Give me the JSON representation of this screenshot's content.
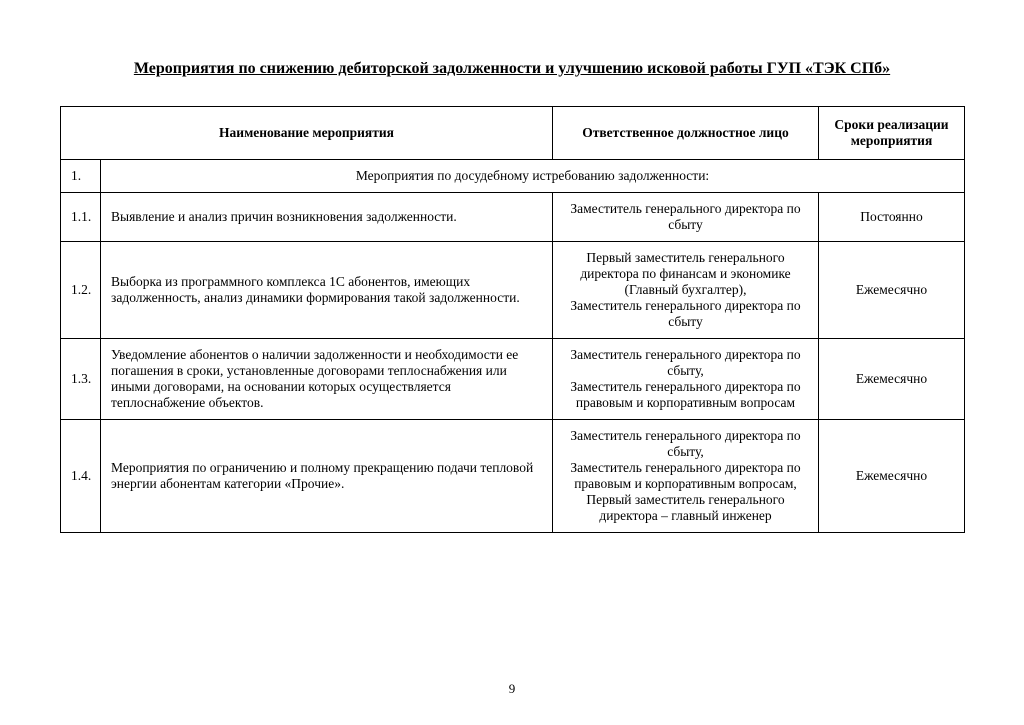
{
  "title": "Мероприятия  по снижению дебиторской задолженности и улучшению исковой работы ГУП «ТЭК СПб»",
  "headers": {
    "name": "Наименование мероприятия",
    "responsible": "Ответственное должностное лицо",
    "term": "Сроки реализации мероприятия"
  },
  "section": {
    "num": "1.",
    "label": "Мероприятия по досудебному истребованию задолженности:"
  },
  "rows": [
    {
      "num": "1.1.",
      "name": "Выявление и анализ причин возникновения задолженности.",
      "responsible": "Заместитель генерального директора по сбыту",
      "term": "Постоянно"
    },
    {
      "num": "1.2.",
      "name": "Выборка из программного  комплекса 1С абонентов, имеющих задолженность, анализ динамики формирования такой задолженности.",
      "responsible": "Первый заместитель генерального директора по финансам и экономике (Главный бухгалтер),\nЗаместитель генерального директора по сбыту",
      "term": "Ежемесячно"
    },
    {
      "num": "1.3.",
      "name": "Уведомление абонентов о наличии задолженности и необходимости ее погашения в сроки, установленные договорами теплоснабжения или иными договорами, на основании которых осуществляется теплоснабжение объектов.",
      "responsible": "Заместитель генерального директора по сбыту,\nЗаместитель генерального директора по правовым и корпоративным вопросам",
      "term": "Ежемесячно"
    },
    {
      "num": "1.4.",
      "name": "Мероприятия по ограничению и полному прекращению подачи тепловой энергии абонентам категории «Прочие».",
      "responsible": "Заместитель генерального директора по сбыту,\nЗаместитель генерального директора по правовым и корпоративным вопросам,\nПервый заместитель генерального директора – главный инженер",
      "term": "Ежемесячно"
    }
  ],
  "pageNumber": "9"
}
